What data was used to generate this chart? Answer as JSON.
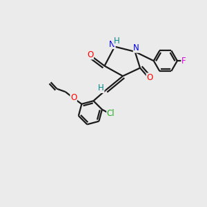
{
  "background_color": "#ebebeb",
  "bond_color": "#1a1a1a",
  "bond_width": 1.6,
  "atom_colors": {
    "O": "#ff0000",
    "N": "#0000ee",
    "H": "#008888",
    "Cl": "#22aa22",
    "F": "#dd00dd",
    "C": "#1a1a1a"
  },
  "font_size": 8.5
}
